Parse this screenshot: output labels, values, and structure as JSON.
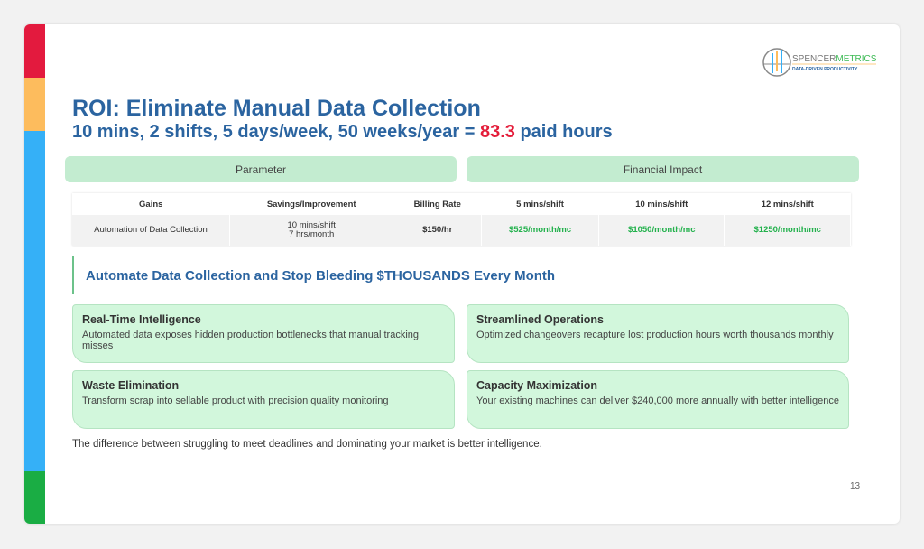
{
  "brand_colors": {
    "red": "#e31a3e",
    "yellow": "#fdbc5d",
    "blue": "#35b0f7",
    "green": "#1aad44",
    "title": "#2b64a0",
    "highlight": "#e41d3a",
    "money": "#22b14c"
  },
  "logo": {
    "name_part1": "SPENCER",
    "name_part2": "METRICS",
    "tagline": "DATA-DRIVEN PRODUCTIVITY"
  },
  "title": "ROI: Eliminate Manual Data Collection",
  "subtitle": {
    "before": "10 mins, 2 shifts, 5 days/week, 50 weeks/year = ",
    "highlight": "83.3",
    "after": " paid hours"
  },
  "headers": {
    "parameter": "Parameter",
    "financial_impact": "Financial Impact"
  },
  "table": {
    "columns": [
      "Gains",
      "Savings/Improvement",
      "Billing Rate",
      "5 mins/shift",
      "10 mins/shift",
      "12 mins/shift"
    ],
    "row": {
      "gain": "Automation of Data Collection",
      "savings_line1": "10 mins/shift",
      "savings_line2": "7 hrs/month",
      "rate": "$150/hr",
      "v5": "$525/month/mc",
      "v10": "$1050/month/mc",
      "v12": "$1250/month/mc"
    }
  },
  "callout": "Automate Data Collection and Stop Bleeding $THOUSANDS Every Month",
  "cards": [
    {
      "title": "Real-Time Intelligence",
      "text": "Automated data exposes hidden production bottlenecks that manual tracking misses"
    },
    {
      "title": "Streamlined Operations",
      "text": "Optimized changeovers recapture lost production hours worth thousands monthly"
    },
    {
      "title": "Waste Elimination",
      "text": "Transform scrap into sellable product with precision quality monitoring"
    },
    {
      "title": "Capacity Maximization",
      "text": "Your existing machines can deliver $240,000 more annually with better intelligence"
    }
  ],
  "footer": "The difference between struggling to meet deadlines and dominating your market is better intelligence.",
  "page_number": "13"
}
